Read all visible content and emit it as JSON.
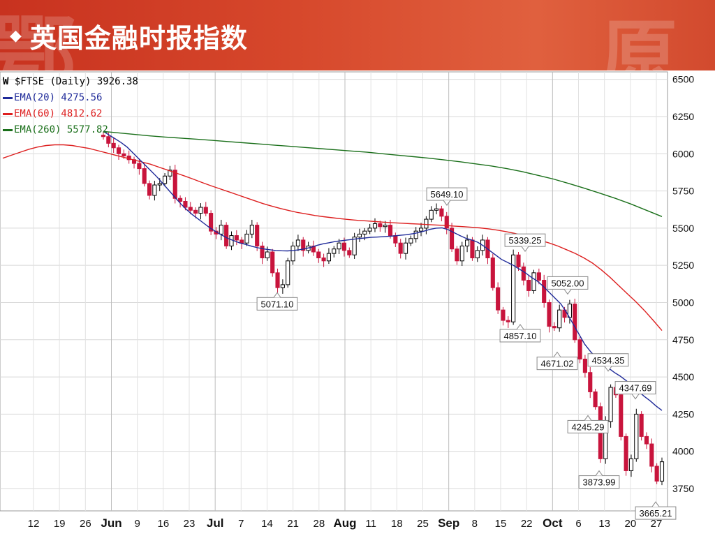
{
  "header": {
    "title": "英国金融时报指数"
  },
  "legend": {
    "symbol": "$FTSE (Daily) 3926.38",
    "ema20": "EMA(20) 4275.56",
    "ema60": "EMA(60) 4812.62",
    "ema260": "EMA(260) 5577.82"
  },
  "colors": {
    "ema20": "#1f2a99",
    "ema60": "#dd1f1f",
    "ema260": "#1a6f1a",
    "down": "#c8143c",
    "up": "#000000",
    "banner": "#d24a2e"
  },
  "chart_data": {
    "type": "candlestick",
    "symbol": "$FTSE",
    "period": "Daily",
    "ylim": [
      3600,
      6550
    ],
    "y_ticks": [
      6500,
      6250,
      6000,
      5750,
      5500,
      5250,
      5000,
      4750,
      4500,
      4250,
      4000,
      3750
    ],
    "x_tick_labels": [
      "12",
      "19",
      "26",
      "Jun",
      "9",
      "16",
      "23",
      "Jul",
      "7",
      "14",
      "21",
      "28",
      "Aug",
      "11",
      "18",
      "25",
      "Sep",
      "8",
      "15",
      "22",
      "Oct",
      "6",
      "13",
      "20",
      "27"
    ],
    "close_series": [
      6115,
      6070,
      6040,
      6000,
      5985,
      5960,
      5935,
      5900,
      5800,
      5720,
      5790,
      5800,
      5850,
      5890,
      5700,
      5680,
      5640,
      5620,
      5600,
      5640,
      5600,
      5480,
      5460,
      5520,
      5380,
      5450,
      5420,
      5400,
      5460,
      5520,
      5380,
      5300,
      5340,
      5200,
      5100,
      5120,
      5280,
      5380,
      5420,
      5350,
      5380,
      5340,
      5300,
      5280,
      5330,
      5360,
      5400,
      5350,
      5320,
      5440,
      5460,
      5480,
      5500,
      5530,
      5510,
      5520,
      5450,
      5400,
      5330,
      5400,
      5430,
      5480,
      5500,
      5560,
      5620,
      5630,
      5580,
      5500,
      5360,
      5280,
      5380,
      5420,
      5300,
      5350,
      5420,
      5300,
      5100,
      4950,
      4880,
      4870,
      5320,
      5240,
      5150,
      5080,
      5200,
      5150,
      5000,
      4840,
      4830,
      4950,
      4900,
      4990,
      4750,
      4620,
      4530,
      4400,
      4300,
      3950,
      4200,
      4430,
      4380,
      4100,
      3870,
      3950,
      4250,
      4100,
      4050,
      3900,
      3800,
      3930
    ],
    "ema20": [
      6150,
      6125,
      6100,
      6075,
      6045,
      6005,
      5965,
      5925,
      5885,
      5845,
      5800,
      5755,
      5710,
      5665,
      5625,
      5590,
      5560,
      5530,
      5500,
      5475,
      5452,
      5430,
      5415,
      5400,
      5390,
      5378,
      5368,
      5360,
      5355,
      5350,
      5348,
      5347,
      5350,
      5355,
      5362,
      5372,
      5385,
      5395,
      5402,
      5410,
      5415,
      5420,
      5425,
      5430,
      5434,
      5438,
      5440,
      5442,
      5445,
      5448,
      5452,
      5456,
      5462,
      5470,
      5480,
      5492,
      5500,
      5502,
      5490,
      5470,
      5450,
      5432,
      5420,
      5405,
      5380,
      5350,
      5320,
      5290,
      5270,
      5250,
      5225,
      5200,
      5170,
      5145,
      5110,
      5070,
      5030,
      4990,
      4930,
      4860,
      4790,
      4720,
      4670,
      4625,
      4590,
      4560,
      4530,
      4505,
      4475,
      4440,
      4405,
      4370,
      4340,
      4305,
      4275
    ],
    "ema60": [
      5970,
      5990,
      6010,
      6030,
      6045,
      6055,
      6060,
      6060,
      6055,
      6045,
      6035,
      6020,
      6005,
      5990,
      5975,
      5960,
      5945,
      5930,
      5910,
      5890,
      5870,
      5850,
      5828,
      5806,
      5785,
      5765,
      5745,
      5725,
      5705,
      5685,
      5665,
      5648,
      5632,
      5618,
      5605,
      5595,
      5585,
      5577,
      5570,
      5563,
      5557,
      5552,
      5548,
      5544,
      5540,
      5536,
      5533,
      5530,
      5527,
      5524,
      5521,
      5518,
      5514,
      5510,
      5506,
      5502,
      5495,
      5487,
      5477,
      5465,
      5450,
      5435,
      5418,
      5400,
      5380,
      5355,
      5330,
      5300,
      5265,
      5220,
      5170,
      5115,
      5060,
      5005,
      4945,
      4880,
      4812
    ],
    "ema260": [
      6150,
      6140,
      6130,
      6120,
      6112,
      6105,
      6098,
      6090,
      6082,
      6074,
      6066,
      6058,
      6050,
      6042,
      6034,
      6026,
      6018,
      6010,
      6000,
      5990,
      5980,
      5970,
      5958,
      5946,
      5932,
      5918,
      5900,
      5880,
      5855,
      5830,
      5800,
      5768,
      5735,
      5700,
      5662,
      5620,
      5578
    ],
    "annotations": [
      {
        "label": "5649.10",
        "value": 5649.1,
        "pos": "top"
      },
      {
        "label": "5339.25",
        "value": 5339.25,
        "pos": "top"
      },
      {
        "label": "5052.00",
        "value": 5052.0,
        "pos": "top"
      },
      {
        "label": "5071.10",
        "value": 5071.1,
        "pos": "bottom"
      },
      {
        "label": "4857.10",
        "value": 4857.1,
        "pos": "bottom"
      },
      {
        "label": "4671.02",
        "value": 4671.02,
        "pos": "bottom"
      },
      {
        "label": "4534.35",
        "value": 4534.35,
        "pos": "top"
      },
      {
        "label": "4347.69",
        "value": 4347.69,
        "pos": "top"
      },
      {
        "label": "4245.29",
        "value": 4245.29,
        "pos": "bottom"
      },
      {
        "label": "3873.99",
        "value": 3873.99,
        "pos": "bottom"
      },
      {
        "label": "3665.21",
        "value": 3665.21,
        "pos": "bottom"
      }
    ],
    "grid": true
  }
}
